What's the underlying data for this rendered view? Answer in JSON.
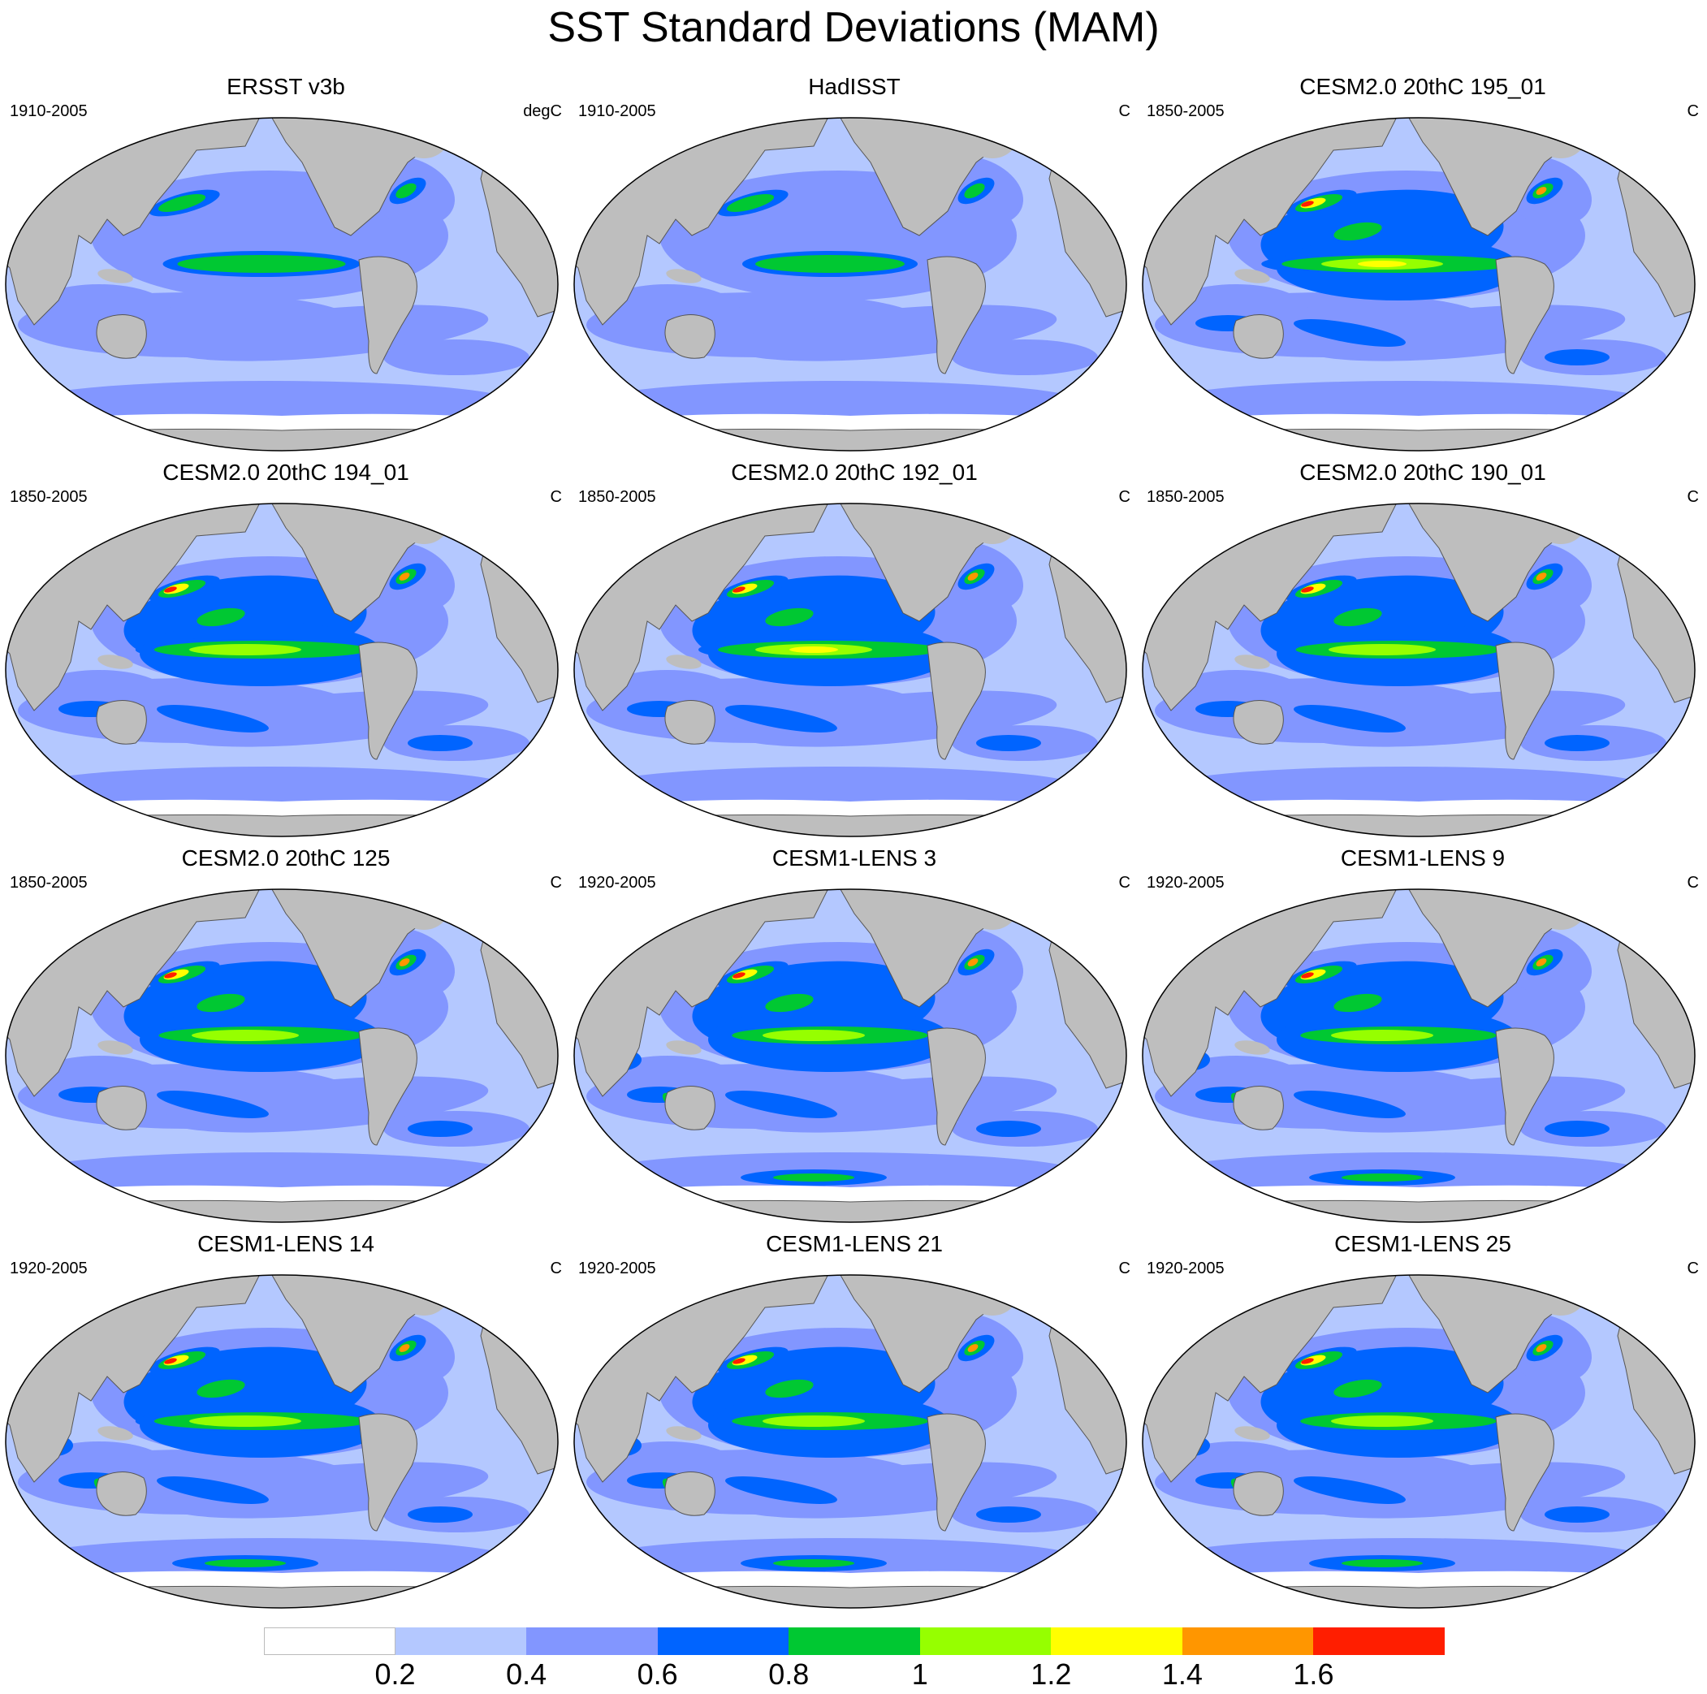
{
  "title": "SST Standard Deviations (MAM)",
  "panels": [
    {
      "title": "ERSST v3b",
      "period": "1910-2005",
      "units": "degC",
      "intensity": 0.9,
      "warmpool": false
    },
    {
      "title": "HadISST",
      "period": "1910-2005",
      "units": "C",
      "intensity": 0.8,
      "warmpool": false
    },
    {
      "title": "CESM2.0 20thC 195_01",
      "period": "1850-2005",
      "units": "C",
      "intensity": 1.25,
      "warmpool": false
    },
    {
      "title": "CESM2.0 20thC 194_01",
      "period": "1850-2005",
      "units": "C",
      "intensity": 1.15,
      "warmpool": false
    },
    {
      "title": "CESM2.0 20thC 192_01",
      "period": "1850-2005",
      "units": "C",
      "intensity": 1.2,
      "warmpool": false
    },
    {
      "title": "CESM2.0 20thC 190_01",
      "period": "1850-2005",
      "units": "C",
      "intensity": 1.1,
      "warmpool": false
    },
    {
      "title": "CESM2.0 20thC 125",
      "period": "1850-2005",
      "units": "C",
      "intensity": 1.1,
      "warmpool": false
    },
    {
      "title": "CESM1-LENS 3",
      "period": "1920-2005",
      "units": "C",
      "intensity": 1.05,
      "warmpool": true
    },
    {
      "title": "CESM1-LENS 9",
      "period": "1920-2005",
      "units": "C",
      "intensity": 1.05,
      "warmpool": true
    },
    {
      "title": "CESM1-LENS 14",
      "period": "1920-2005",
      "units": "C",
      "intensity": 1.15,
      "warmpool": true
    },
    {
      "title": "CESM1-LENS 21",
      "period": "1920-2005",
      "units": "C",
      "intensity": 1.05,
      "warmpool": true
    },
    {
      "title": "CESM1-LENS 25",
      "period": "1920-2005",
      "units": "C",
      "intensity": 1.05,
      "warmpool": true
    }
  ],
  "colorbar": {
    "colors": [
      "#ffffff",
      "#b4c8ff",
      "#8296ff",
      "#0064ff",
      "#00c832",
      "#96ff00",
      "#ffff00",
      "#ff9600",
      "#ff1e00"
    ],
    "labels": [
      "0.2",
      "0.4",
      "0.6",
      "0.8",
      "1",
      "1.2",
      "1.4",
      "1.6"
    ]
  },
  "land_color": "#bebebe"
}
